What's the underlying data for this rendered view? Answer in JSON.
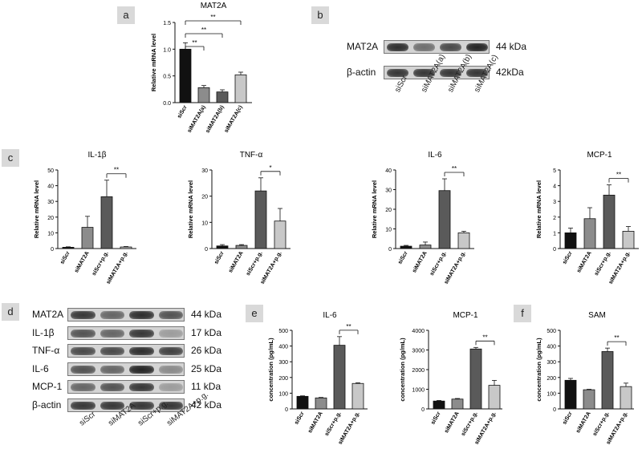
{
  "panel_letters": [
    "a",
    "b",
    "c",
    "d",
    "e",
    "f"
  ],
  "blot_b": {
    "rows": [
      {
        "protein": "MAT2A",
        "size": "44 kDa",
        "bands": [
          0.9,
          0.55,
          0.75,
          0.95
        ]
      },
      {
        "protein": "β-actin",
        "size": "42kDa",
        "bands": [
          0.85,
          0.85,
          0.85,
          0.85
        ]
      }
    ],
    "lanes": [
      "siScr",
      "siMAT2A(a)",
      "siMAT2A(b)",
      "siMAT2A(c)"
    ]
  },
  "blot_d": {
    "rows": [
      {
        "protein": "MAT2A",
        "size": "44 kDa",
        "bands": [
          0.85,
          0.6,
          0.9,
          0.7
        ]
      },
      {
        "protein": "IL-1β",
        "size": "17 kDa",
        "bands": [
          0.7,
          0.6,
          0.85,
          0.3
        ]
      },
      {
        "protein": "TNF-α",
        "size": "26 kDa",
        "bands": [
          0.75,
          0.75,
          0.9,
          0.8
        ]
      },
      {
        "protein": "IL-6",
        "size": "25 kDa",
        "bands": [
          0.7,
          0.6,
          0.95,
          0.4
        ]
      },
      {
        "protein": "MCP-1",
        "size": "11 kDa",
        "bands": [
          0.6,
          0.7,
          0.85,
          0.3
        ]
      },
      {
        "protein": "β-actin",
        "size": "42 kDa",
        "bands": [
          0.85,
          0.85,
          0.85,
          0.85
        ]
      }
    ],
    "lanes": [
      "siScr",
      "siMAT2A",
      "siScr+p.g.",
      "siMAT2A+p.g."
    ]
  },
  "chart_data": [
    {
      "type": "bar",
      "panel": "a",
      "title": "MAT2A",
      "xlabel": "",
      "ylabel": "Relative mRNA level",
      "categories": [
        "siScr",
        "siMAT2A(a)",
        "siMAT2A(b)",
        "siMAT2A(c)"
      ],
      "values": [
        1.0,
        0.28,
        0.2,
        0.52
      ],
      "errors": [
        0.12,
        0.04,
        0.04,
        0.05
      ],
      "colors": [
        "#111111",
        "#8c8c8c",
        "#5a5a5a",
        "#c8c8c8"
      ],
      "ylim": [
        0,
        1.5
      ],
      "yticks": [
        "0.0",
        "0.5",
        "1.0",
        "1.5"
      ],
      "significance": [
        {
          "from": 0,
          "to": 1,
          "label": "**"
        },
        {
          "from": 0,
          "to": 2,
          "label": "**"
        },
        {
          "from": 0,
          "to": 3,
          "label": "**"
        }
      ]
    },
    {
      "type": "bar",
      "panel": "c",
      "title": "IL-1β",
      "xlabel": "",
      "ylabel": "Relative mRNA level",
      "categories": [
        "siScr",
        "siMAT2A",
        "siScr+p.g.",
        "siMAT2A+p.g."
      ],
      "values": [
        0.8,
        13.5,
        33.0,
        1.0
      ],
      "errors": [
        0.3,
        7.0,
        10.5,
        0.3
      ],
      "colors": [
        "#111111",
        "#8c8c8c",
        "#5a5a5a",
        "#c8c8c8"
      ],
      "ylim": [
        0,
        50
      ],
      "yticks": [
        "0",
        "10",
        "20",
        "30",
        "40",
        "50"
      ],
      "significance": [
        {
          "from": 2,
          "to": 3,
          "label": "**"
        }
      ]
    },
    {
      "type": "bar",
      "panel": "c",
      "title": "TNF-α",
      "xlabel": "",
      "ylabel": "Relative mRNA level",
      "categories": [
        "siScr",
        "siMAT2A",
        "siScr+p.g.",
        "siMAT2A+p.g."
      ],
      "values": [
        1.0,
        1.2,
        22.0,
        10.5
      ],
      "errors": [
        0.5,
        0.3,
        5.0,
        4.8
      ],
      "colors": [
        "#111111",
        "#8c8c8c",
        "#5a5a5a",
        "#c8c8c8"
      ],
      "ylim": [
        0,
        30
      ],
      "yticks": [
        "0",
        "10",
        "20",
        "30"
      ],
      "significance": [
        {
          "from": 2,
          "to": 3,
          "label": "*"
        }
      ]
    },
    {
      "type": "bar",
      "panel": "c",
      "title": "IL-6",
      "xlabel": "",
      "ylabel": "Relative mRNA level",
      "categories": [
        "siScr",
        "siMAT2A",
        "siScr+p.g.",
        "siMAT2A+p.g."
      ],
      "values": [
        1.2,
        1.8,
        29.5,
        8.0
      ],
      "errors": [
        0.4,
        1.5,
        6.0,
        0.8
      ],
      "colors": [
        "#111111",
        "#8c8c8c",
        "#5a5a5a",
        "#c8c8c8"
      ],
      "ylim": [
        0,
        40
      ],
      "yticks": [
        "0",
        "10",
        "20",
        "30",
        "40"
      ],
      "significance": [
        {
          "from": 2,
          "to": 3,
          "label": "**"
        }
      ]
    },
    {
      "type": "bar",
      "panel": "c",
      "title": "MCP-1",
      "xlabel": "",
      "ylabel": "Relative mRNA level",
      "categories": [
        "siScr",
        "siMAT2A",
        "siScr+p.g.",
        "siMAT2A+p.g."
      ],
      "values": [
        1.0,
        1.9,
        3.4,
        1.1
      ],
      "errors": [
        0.3,
        0.7,
        0.65,
        0.3
      ],
      "colors": [
        "#111111",
        "#8c8c8c",
        "#5a5a5a",
        "#c8c8c8"
      ],
      "ylim": [
        0,
        5
      ],
      "yticks": [
        "0",
        "1",
        "2",
        "3",
        "4",
        "5"
      ],
      "significance": [
        {
          "from": 2,
          "to": 3,
          "label": "**"
        }
      ]
    },
    {
      "type": "bar",
      "panel": "e",
      "title": "IL-6",
      "xlabel": "",
      "ylabel": "concentration (pg/mL)",
      "categories": [
        "siScr",
        "siMAT2A",
        "siScr+p.g.",
        "siMAT2A+p.g."
      ],
      "values": [
        80,
        70,
        405,
        162
      ],
      "errors": [
        3,
        3,
        55,
        4
      ],
      "colors": [
        "#111111",
        "#8c8c8c",
        "#5a5a5a",
        "#c8c8c8"
      ],
      "ylim": [
        0,
        500
      ],
      "yticks": [
        "0",
        "100",
        "200",
        "300",
        "400",
        "500"
      ],
      "significance": [
        {
          "from": 2,
          "to": 3,
          "label": "**"
        }
      ]
    },
    {
      "type": "bar",
      "panel": "e",
      "title": "MCP-1",
      "xlabel": "",
      "ylabel": "concentration (pg/mL)",
      "categories": [
        "siScr",
        "siMAT2A",
        "siScr+p.g.",
        "siMAT2A+p.g."
      ],
      "values": [
        400,
        500,
        3050,
        1200
      ],
      "errors": [
        30,
        30,
        80,
        250
      ],
      "colors": [
        "#111111",
        "#8c8c8c",
        "#5a5a5a",
        "#c8c8c8"
      ],
      "ylim": [
        0,
        4000
      ],
      "yticks": [
        "0",
        "1000",
        "2000",
        "3000",
        "4000"
      ],
      "significance": [
        {
          "from": 2,
          "to": 3,
          "label": "**"
        }
      ]
    },
    {
      "type": "bar",
      "panel": "f",
      "title": "SAM",
      "xlabel": "",
      "ylabel": "concentration (pg/mL)",
      "categories": [
        "siScr",
        "siMAT2A",
        "siScr+p.g.",
        "siMAT2A+p.g."
      ],
      "values": [
        182,
        122,
        365,
        142
      ],
      "errors": [
        12,
        3,
        22,
        22
      ],
      "colors": [
        "#111111",
        "#8c8c8c",
        "#5a5a5a",
        "#c8c8c8"
      ],
      "ylim": [
        0,
        500
      ],
      "yticks": [
        "0",
        "100",
        "200",
        "300",
        "400",
        "500"
      ],
      "significance": [
        {
          "from": 2,
          "to": 3,
          "label": "**"
        }
      ]
    }
  ]
}
